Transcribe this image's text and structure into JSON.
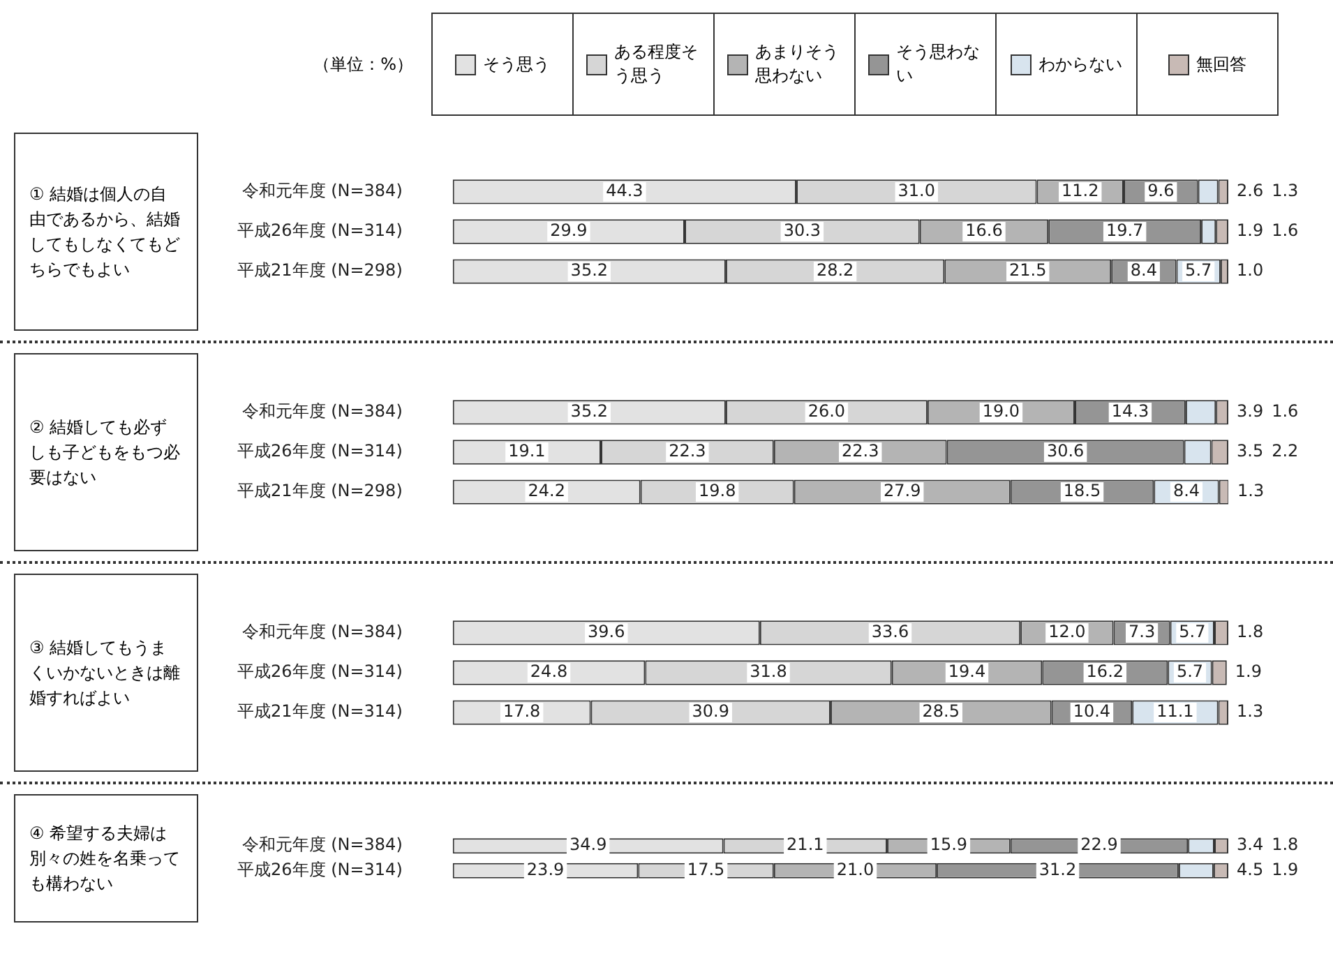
{
  "chart_data": [
    {
      "type": "bar",
      "orientation": "horizontal",
      "stacked": true,
      "title": "① 結婚は個人の自由であるから、結婚してもしなくてもどちらでもよい",
      "annotations": [
        "（単位：%）"
      ],
      "legend": "top",
      "tick_labels": "y",
      "xlim": [
        0,
        100
      ],
      "categories": [
        "令和元年度 (N=384)",
        "平成26年度 (N=314)",
        "平成21年度 (N=298)"
      ],
      "series": [
        {
          "name": "そう思う",
          "color": "#e2e2e2",
          "values": [
            44.3,
            29.9,
            35.2
          ],
          "value_labels": [
            "44.3",
            "29.9",
            "35.2"
          ]
        },
        {
          "name": "ある程度そう思う",
          "color": "#d6d6d6",
          "values": [
            31.0,
            30.3,
            28.2
          ],
          "value_labels": [
            "31.0",
            "30.3",
            "28.2"
          ]
        },
        {
          "name": "あまりそう思わない",
          "color": "#b4b4b4",
          "values": [
            11.2,
            16.6,
            21.5
          ],
          "value_labels": [
            "11.2",
            "16.6",
            "21.5"
          ]
        },
        {
          "name": "そう思わない",
          "color": "#959595",
          "values": [
            9.6,
            19.7,
            8.4
          ],
          "value_labels": [
            "9.6",
            "19.7",
            "8.4"
          ]
        },
        {
          "name": "わからない",
          "color": "#d8e4ee",
          "values": [
            2.6,
            1.9,
            5.7
          ],
          "value_labels": [
            "2.6",
            "1.9",
            "5.7"
          ]
        },
        {
          "name": "無回答",
          "color": "#c8bab5",
          "values": [
            1.3,
            1.6,
            1.0
          ],
          "value_labels": [
            "1.3",
            "1.6",
            "1.0"
          ]
        }
      ]
    },
    {
      "type": "bar",
      "orientation": "horizontal",
      "stacked": true,
      "title": "② 結婚しても必ずしも子どもをもつ必要はない",
      "tick_labels": "y",
      "xlim": [
        0,
        100
      ],
      "categories": [
        "令和元年度 (N=384)",
        "平成26年度 (N=314)",
        "平成21年度 (N=298)"
      ],
      "series": [
        {
          "color": "#e2e2e2",
          "values": [
            35.2,
            19.1,
            24.2
          ],
          "value_labels": [
            "35.2",
            "19.1",
            "24.2"
          ]
        },
        {
          "color": "#d6d6d6",
          "values": [
            26.0,
            22.3,
            19.8
          ],
          "value_labels": [
            "26.0",
            "22.3",
            "19.8"
          ]
        },
        {
          "color": "#b4b4b4",
          "values": [
            19.0,
            22.3,
            27.9
          ],
          "value_labels": [
            "19.0",
            "22.3",
            "27.9"
          ]
        },
        {
          "color": "#959595",
          "values": [
            14.3,
            30.6,
            18.5
          ],
          "value_labels": [
            "14.3",
            "30.6",
            "18.5"
          ]
        },
        {
          "color": "#d8e4ee",
          "values": [
            3.9,
            3.5,
            8.4
          ],
          "value_labels": [
            "3.9",
            "3.5",
            "8.4"
          ]
        },
        {
          "color": "#c8bab5",
          "values": [
            1.6,
            2.2,
            1.3
          ],
          "value_labels": [
            "1.6",
            "2.2",
            "1.3"
          ]
        }
      ]
    },
    {
      "type": "bar",
      "orientation": "horizontal",
      "stacked": true,
      "title": "③ 結婚してもうまくいかないときは離婚すればよい",
      "tick_labels": "y",
      "xlim": [
        0,
        100
      ],
      "categories": [
        "令和元年度 (N=384)",
        "平成26年度 (N=314)",
        "平成21年度 (N=314)"
      ],
      "series": [
        {
          "color": "#e2e2e2",
          "values": [
            39.6,
            24.8,
            17.8
          ],
          "value_labels": [
            "39.6",
            "24.8",
            "17.8"
          ]
        },
        {
          "color": "#d6d6d6",
          "values": [
            33.6,
            31.8,
            30.9
          ],
          "value_labels": [
            "33.6",
            "31.8",
            "30.9"
          ]
        },
        {
          "color": "#b4b4b4",
          "values": [
            12.0,
            19.4,
            28.5
          ],
          "value_labels": [
            "12.0",
            "19.4",
            "28.5"
          ]
        },
        {
          "color": "#959595",
          "values": [
            7.3,
            16.2,
            10.4
          ],
          "value_labels": [
            "7.3",
            "16.2",
            "10.4"
          ]
        },
        {
          "color": "#d8e4ee",
          "values": [
            5.7,
            5.7,
            11.1
          ],
          "value_labels": [
            "5.7",
            "5.7",
            "11.1"
          ]
        },
        {
          "color": "#c8bab5",
          "values": [
            1.8,
            1.9,
            1.3
          ],
          "value_labels": [
            "1.8",
            "1.9",
            "1.3"
          ]
        }
      ]
    },
    {
      "type": "bar",
      "orientation": "horizontal",
      "stacked": true,
      "title": "④ 希望する夫婦は別々の姓を名乗っても構わない",
      "tick_labels": "y",
      "xlim": [
        0,
        100
      ],
      "categories": [
        "令和元年度 (N=384)",
        "平成26年度 (N=314)"
      ],
      "series": [
        {
          "color": "#e2e2e2",
          "values": [
            34.9,
            23.9
          ],
          "value_labels": [
            "34.9",
            "23.9"
          ]
        },
        {
          "color": "#d6d6d6",
          "values": [
            21.1,
            17.5
          ],
          "value_labels": [
            "21.1",
            "17.5"
          ]
        },
        {
          "color": "#b4b4b4",
          "values": [
            15.9,
            21.0
          ],
          "value_labels": [
            "15.9",
            "21.0"
          ]
        },
        {
          "color": "#959595",
          "values": [
            22.9,
            31.2
          ],
          "value_labels": [
            "22.9",
            "31.2"
          ]
        },
        {
          "color": "#d8e4ee",
          "values": [
            3.4,
            4.5
          ],
          "value_labels": [
            "3.4",
            "4.5"
          ]
        },
        {
          "color": "#c8bab5",
          "values": [
            1.8,
            1.9
          ],
          "value_labels": [
            "1.8",
            "1.9"
          ]
        }
      ]
    }
  ]
}
